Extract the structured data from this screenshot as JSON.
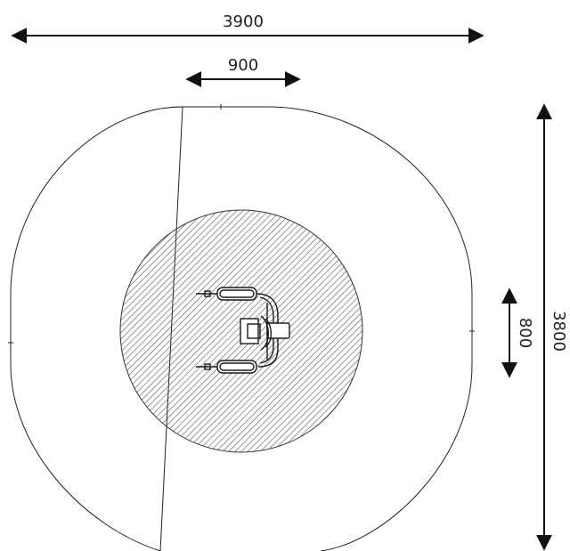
{
  "dimensions": {
    "overall_width": "3900",
    "overall_depth": "3800",
    "equipment_width": "900",
    "equipment_depth": "800"
  },
  "colors": {
    "line": "#222222",
    "hatch": "#555555",
    "background": "#ffffff"
  }
}
